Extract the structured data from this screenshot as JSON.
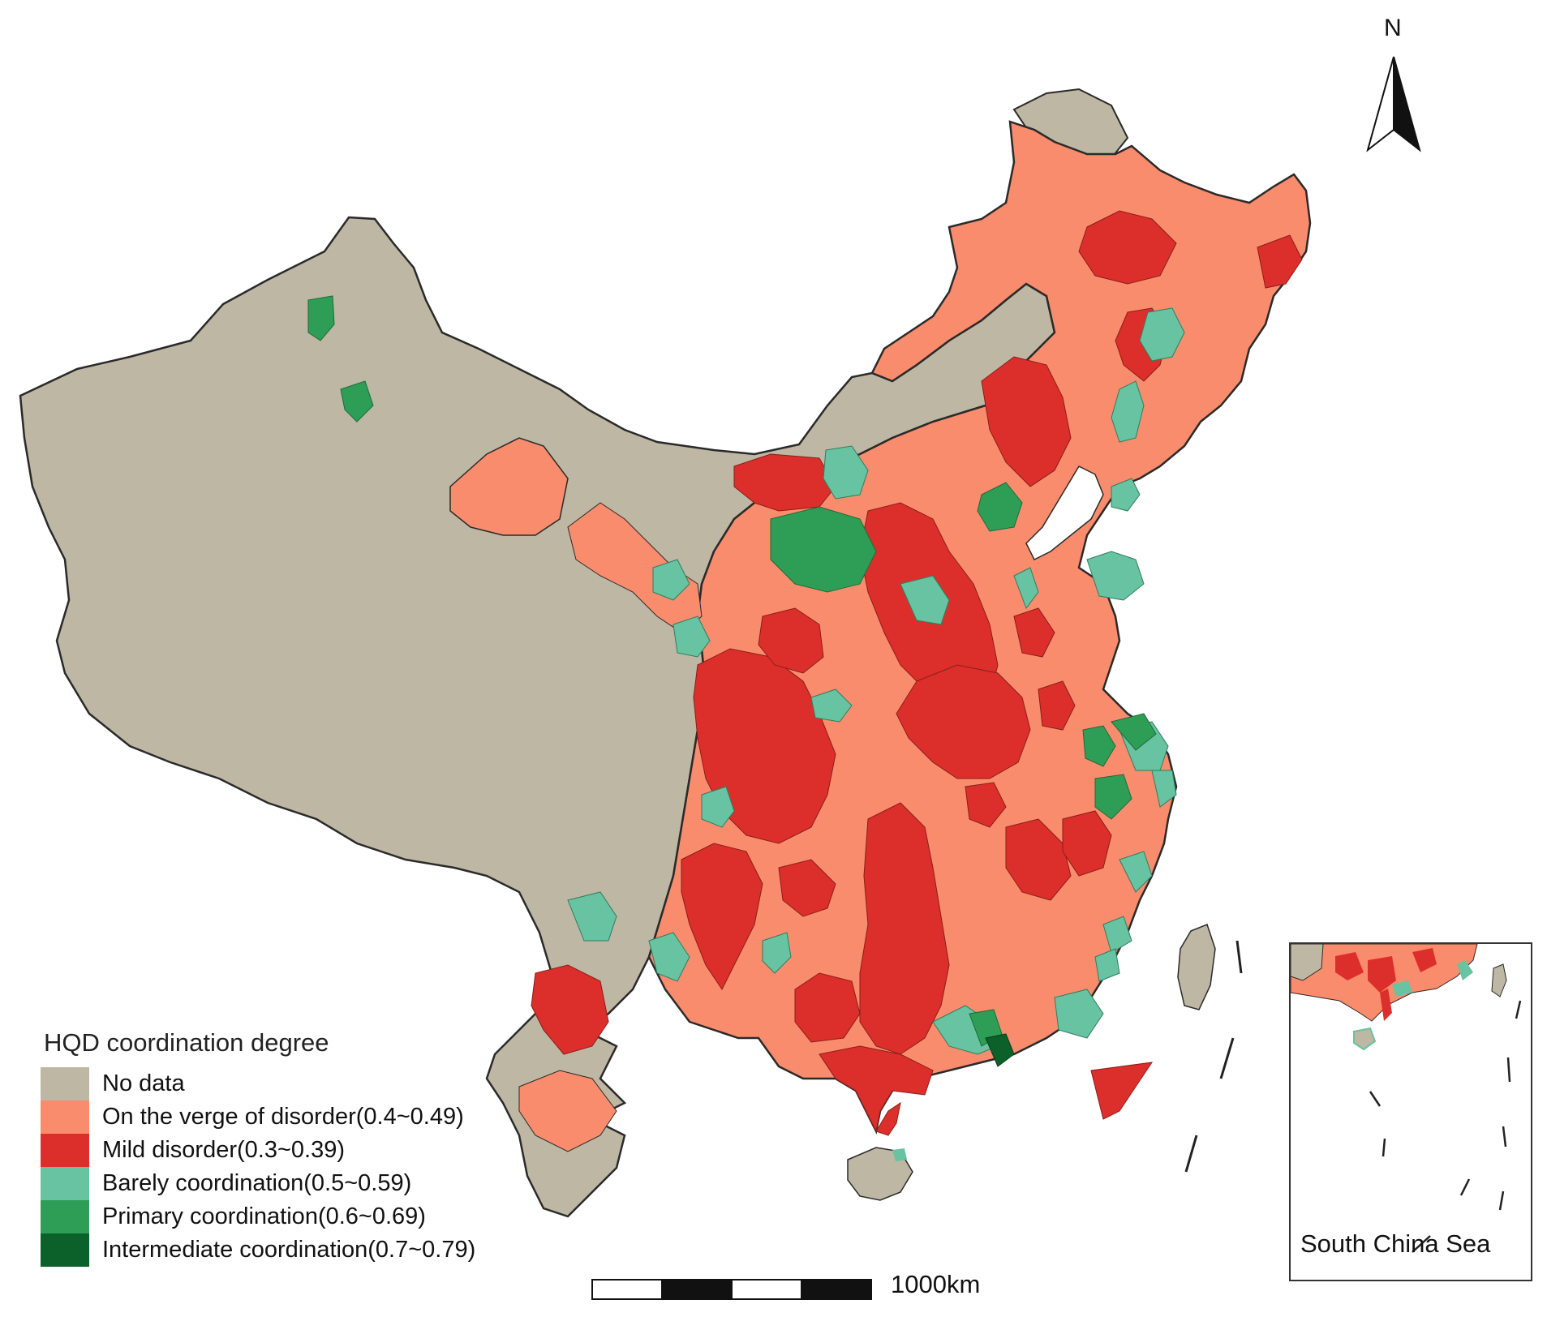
{
  "map": {
    "legend": {
      "title": "HQD coordination degree",
      "items": [
        {
          "label": "No data",
          "color": "#bdb7a3"
        },
        {
          "label": "On the verge of disorder(0.4~0.49)",
          "color": "#f98c6c"
        },
        {
          "label": "Mild disorder(0.3~0.39)",
          "color": "#dc2f2b"
        },
        {
          "label": "Barely coordination(0.5~0.59)",
          "color": "#67c3a1"
        },
        {
          "label": "Primary coordination(0.6~0.69)",
          "color": "#2e9e57"
        },
        {
          "label": "Intermediate coordination(0.7~0.79)",
          "color": "#0b6129"
        }
      ]
    },
    "north_arrow": "N",
    "scale_bar": "1000km",
    "inset": {
      "label": "South China Sea"
    },
    "colors": {
      "no_data": "#bdb7a3",
      "verge_disorder": "#f98c6c",
      "mild_disorder": "#dc2f2b",
      "barely": "#67c3a1",
      "primary": "#2e9e57",
      "intermediate": "#0b6129",
      "border": "#2a2a2a"
    }
  }
}
